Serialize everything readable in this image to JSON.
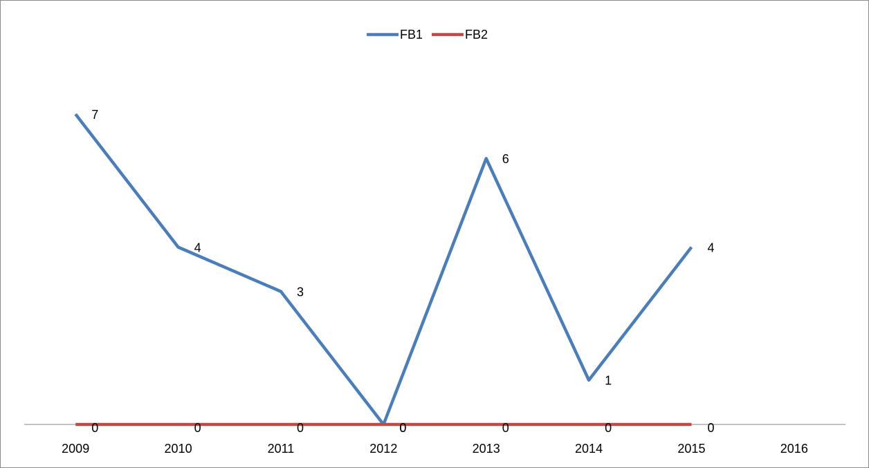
{
  "chart_data": {
    "type": "line",
    "categories": [
      "2009",
      "2010",
      "2011",
      "2012",
      "2013",
      "2014",
      "2015",
      "2016"
    ],
    "series": [
      {
        "name": "FB1",
        "color": "#4a7ebb",
        "values": [
          7,
          4,
          3,
          0,
          6,
          1,
          4,
          null
        ]
      },
      {
        "name": "FB2",
        "color": "#be4b48",
        "values": [
          0,
          0,
          0,
          0,
          0,
          0,
          0,
          null
        ]
      }
    ],
    "ylim": [
      0,
      8
    ],
    "legend": "top",
    "data_labels": true
  }
}
